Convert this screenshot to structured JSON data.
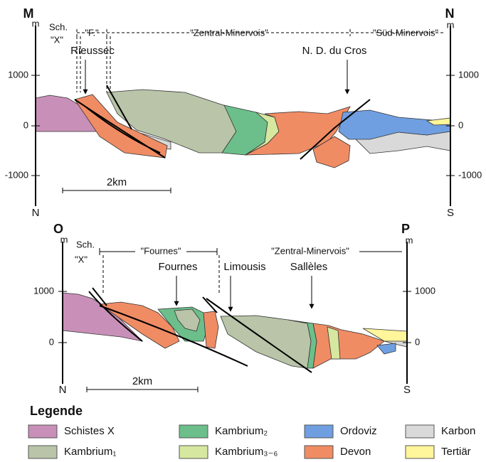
{
  "sections": [
    {
      "start_label": "M",
      "start_unit": "m",
      "end_label": "N",
      "end_unit": "m",
      "zones": [
        "Sch.",
        "\"X\"",
        "\"F.\"",
        "\"Zentral-Minervois\"",
        "\"Süd-Minervois\""
      ],
      "places": [
        "Rieussec",
        "N. D. du Cros"
      ],
      "left_ticks": [
        "1000",
        "0",
        "-1000"
      ],
      "right_ticks": [
        "1000",
        "0",
        "-1000"
      ],
      "scale": "2km",
      "start_dir": "N",
      "end_dir": "S"
    },
    {
      "start_label": "O",
      "start_unit": "m",
      "end_label": "P",
      "end_unit": "m",
      "zones": [
        "Sch.",
        "\"X\"",
        "\"Fournes\"",
        "\"Zentral-Minervois\""
      ],
      "places": [
        "Fournes",
        "Limousis",
        "Sallèles"
      ],
      "left_ticks": [
        "1000",
        "0"
      ],
      "right_ticks": [
        "1000",
        "0"
      ],
      "scale": "2km",
      "start_dir": "N",
      "end_dir": "S"
    }
  ],
  "legend": {
    "title": "Legende",
    "items": [
      "Schistes X",
      "Kambrium₁",
      "Kambrium₂",
      "Kambrium₃₋₆",
      "Ordoviz",
      "Devon",
      "Karbon",
      "Tertiär"
    ]
  }
}
